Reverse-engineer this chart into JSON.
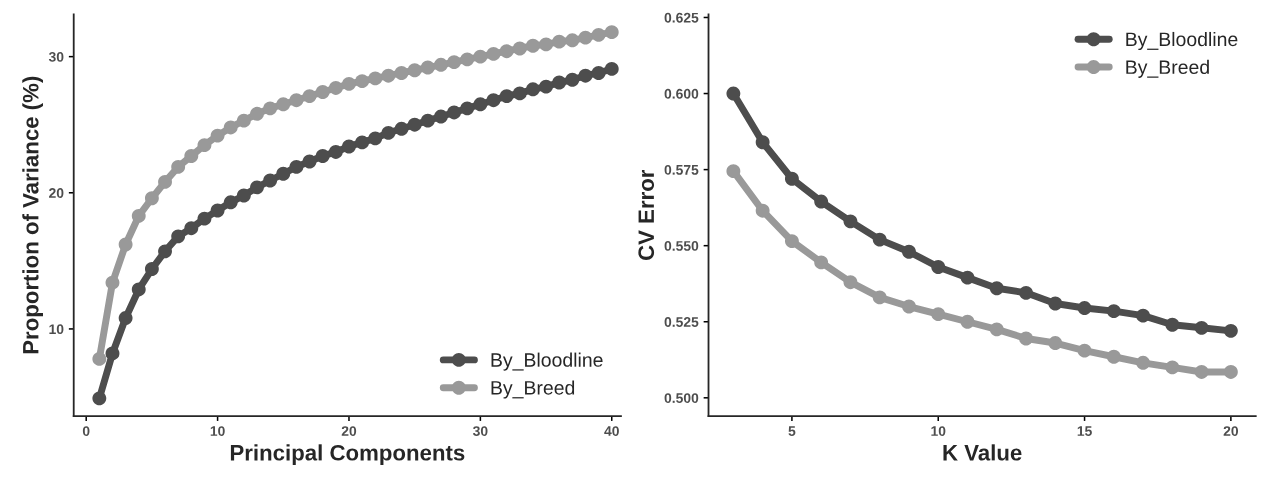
{
  "chart_data": [
    {
      "type": "line",
      "xlabel": "Principal Components",
      "ylabel": "Proportion of Variance (%)",
      "x": [
        1,
        2,
        3,
        4,
        5,
        6,
        7,
        8,
        9,
        10,
        11,
        12,
        13,
        14,
        15,
        16,
        17,
        18,
        19,
        20,
        21,
        22,
        23,
        24,
        25,
        26,
        27,
        28,
        29,
        30,
        31,
        32,
        33,
        34,
        35,
        36,
        37,
        38,
        39,
        40
      ],
      "series": [
        {
          "name": "By_Bloodline",
          "color": "#4d4d4d",
          "values": [
            4.9,
            8.2,
            10.8,
            12.9,
            14.4,
            15.7,
            16.8,
            17.4,
            18.1,
            18.7,
            19.3,
            19.8,
            20.4,
            20.9,
            21.4,
            21.9,
            22.3,
            22.7,
            23.0,
            23.4,
            23.7,
            24.0,
            24.4,
            24.7,
            25.0,
            25.3,
            25.6,
            25.9,
            26.2,
            26.5,
            26.8,
            27.1,
            27.3,
            27.6,
            27.8,
            28.1,
            28.3,
            28.6,
            28.8,
            29.1
          ]
        },
        {
          "name": "By_Breed",
          "color": "#999999",
          "values": [
            7.8,
            13.4,
            16.2,
            18.3,
            19.6,
            20.8,
            21.9,
            22.7,
            23.5,
            24.2,
            24.8,
            25.3,
            25.8,
            26.2,
            26.5,
            26.8,
            27.1,
            27.4,
            27.7,
            28.0,
            28.2,
            28.4,
            28.6,
            28.8,
            29.0,
            29.2,
            29.4,
            29.6,
            29.8,
            30.0,
            30.2,
            30.4,
            30.6,
            30.8,
            30.9,
            31.1,
            31.2,
            31.4,
            31.6,
            31.8
          ]
        }
      ],
      "xlim": [
        -0.95,
        40.7
      ],
      "xticks": [
        0,
        10,
        20,
        30,
        40
      ],
      "ylim": [
        3.6,
        33.1
      ],
      "yticks": [
        10,
        20,
        30
      ],
      "marker": "circle",
      "line_style": "solid",
      "grid": false,
      "legend": "bottom right"
    },
    {
      "type": "line",
      "xlabel": "K Value",
      "ylabel": "CV Error",
      "x": [
        3,
        4,
        5,
        6,
        7,
        8,
        9,
        10,
        11,
        12,
        13,
        14,
        15,
        16,
        17,
        18,
        19,
        20
      ],
      "series": [
        {
          "name": "By_Bloodline",
          "color": "#4d4d4d",
          "values": [
            0.6,
            0.584,
            0.572,
            0.5645,
            0.558,
            0.552,
            0.548,
            0.543,
            0.5395,
            0.536,
            0.5345,
            0.531,
            0.5295,
            0.5285,
            0.527,
            0.524,
            0.523,
            0.522
          ]
        },
        {
          "name": "By_Breed",
          "color": "#999999",
          "values": [
            0.5745,
            0.5615,
            0.5515,
            0.5445,
            0.538,
            0.533,
            0.53,
            0.5275,
            0.525,
            0.5225,
            0.5195,
            0.518,
            0.5155,
            0.5135,
            0.5115,
            0.51,
            0.5085,
            0.5085
          ]
        }
      ],
      "xlim": [
        2.15,
        20.85
      ],
      "xticks": [
        5,
        10,
        15,
        20
      ],
      "ylim": [
        0.494,
        0.626
      ],
      "yticks": [
        {
          "value": 0.5,
          "label": "0.500"
        },
        {
          "value": 0.525,
          "label": "0.525"
        },
        {
          "value": 0.55,
          "label": "0.550"
        },
        {
          "value": 0.575,
          "label": "0.575"
        },
        {
          "value": 0.6,
          "label": "0.600"
        },
        {
          "value": 0.625,
          "label": "0.625"
        }
      ],
      "marker": "circle",
      "line_style": "solid",
      "grid": false,
      "legend": "top right"
    }
  ]
}
